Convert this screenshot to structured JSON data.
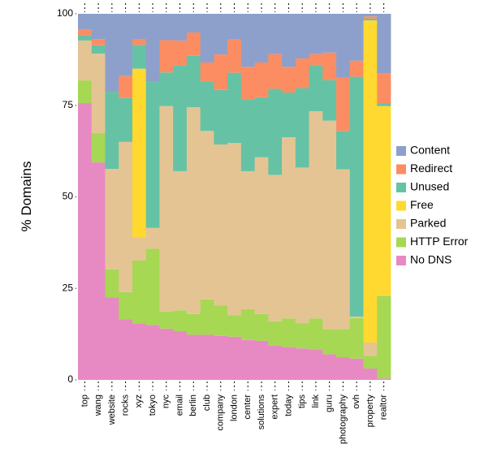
{
  "chart_data": {
    "type": "stacked-bar",
    "y_label": "% Domains",
    "categories": [
      "top",
      "wang",
      "website",
      "rocks",
      "xyz",
      "tokyo",
      "nyc",
      "email",
      "berlin",
      "club",
      "company",
      "london",
      "center",
      "solutions",
      "expert",
      "today",
      "tips",
      "link",
      "guru",
      "photography",
      "ovh",
      "property",
      "realtor"
    ],
    "series": [
      {
        "name": "No DNS",
        "color": "#e78ac3",
        "values": [
          75.6,
          59.4,
          22.5,
          16.6,
          15.4,
          15,
          14,
          13.3,
          12.3,
          12.3,
          12,
          11.8,
          10.9,
          10.7,
          9.4,
          9,
          8.6,
          8.3,
          7,
          6.2,
          5.8,
          3.1,
          0.4
        ]
      },
      {
        "name": "HTTP Error",
        "color": "#a6d854",
        "values": [
          6.2,
          8,
          7.7,
          7.4,
          17.2,
          20.8,
          4.7,
          5.7,
          5.7,
          9.7,
          8.3,
          5.9,
          8.4,
          7.3,
          6.6,
          7.8,
          6.9,
          8.5,
          6.9,
          7.7,
          11.1,
          3.5,
          22.6
        ]
      },
      {
        "name": "Parked",
        "color": "#e5c494",
        "values": [
          10.9,
          21.7,
          27.4,
          41,
          6.4,
          5.7,
          56.1,
          38,
          56.5,
          46,
          44,
          47,
          37.7,
          42.8,
          40,
          49.5,
          42.5,
          56.6,
          56.9,
          43.6,
          0.4,
          3.6,
          0.1
        ]
      },
      {
        "name": "Free",
        "color": "#ffd92f",
        "values": [
          0,
          0,
          0,
          0,
          46,
          0,
          0,
          0,
          0,
          0,
          0,
          0,
          0,
          0,
          0,
          0,
          0,
          0,
          0,
          0,
          0,
          88,
          51.7
        ]
      },
      {
        "name": "Unused",
        "color": "#66c2a5",
        "values": [
          1.5,
          2.3,
          21.1,
          12,
          6.5,
          40,
          9.2,
          28.9,
          14,
          13.5,
          14.9,
          19.2,
          19.5,
          16.4,
          23.5,
          12.2,
          21.7,
          12.6,
          11.1,
          10.5,
          65.5,
          0.5,
          0.7
        ]
      },
      {
        "name": "Redirect",
        "color": "#fc8d62",
        "values": [
          1.5,
          1.7,
          0,
          6,
          1.5,
          0,
          8.8,
          6.8,
          6.4,
          5.2,
          9.7,
          9.1,
          9,
          9.5,
          9.5,
          7,
          8.1,
          3,
          7.5,
          14.6,
          4.4,
          0.6,
          8.3
        ]
      },
      {
        "name": "Content",
        "color": "#8da0cb",
        "values": [
          4.3,
          6.9,
          21.3,
          17,
          7,
          18.5,
          7.2,
          7.3,
          5.1,
          13.3,
          11.1,
          7,
          14.5,
          13.3,
          11,
          14.5,
          12.2,
          11,
          10.6,
          17.4,
          12.8,
          0.7,
          16.2
        ]
      }
    ],
    "ylim": [
      0,
      100
    ],
    "yticks": [
      0,
      25,
      50,
      75,
      100
    ],
    "legend": "right"
  }
}
